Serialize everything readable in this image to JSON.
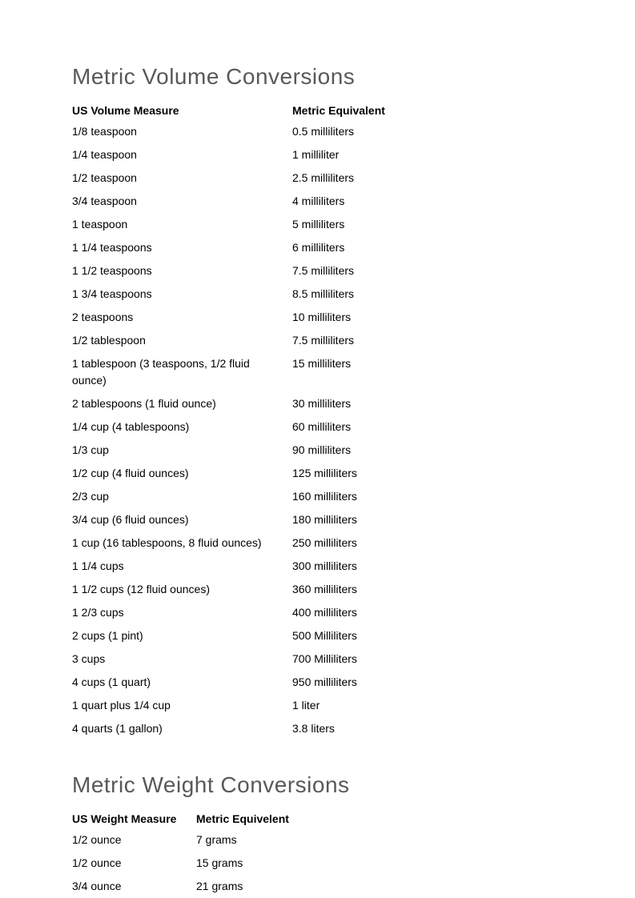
{
  "page": {
    "background_color": "#ffffff",
    "text_color": "#000000",
    "heading_color": "#595959",
    "font_family": "Arial, Helvetica, sans-serif",
    "body_fontsize": 14,
    "heading_fontsize": 28
  },
  "volume_section": {
    "title": "Metric Volume Conversions",
    "columns": [
      "US Volume Measure",
      "Metric Equivalent"
    ],
    "rows": [
      [
        "1/8 teaspoon",
        "0.5 milliliters"
      ],
      [
        "1/4 teaspoon",
        "1 milliliter"
      ],
      [
        "1/2 teaspoon",
        "2.5 milliliters"
      ],
      [
        "3/4 teaspoon",
        "4 milliliters"
      ],
      [
        "1 teaspoon",
        "5 milliliters"
      ],
      [
        "1 1/4 teaspoons",
        "6 milliliters"
      ],
      [
        "1 1/2 teaspoons",
        "7.5 milliliters"
      ],
      [
        "1 3/4 teaspoons",
        "8.5 milliliters"
      ],
      [
        "2 teaspoons",
        "10 milliliters"
      ],
      [
        "1/2 tablespoon",
        "7.5 milliliters"
      ],
      [
        "1 tablespoon (3 teaspoons, 1/2 fluid ounce)",
        "15 milliliters"
      ],
      [
        "2 tablespoons (1 fluid ounce)",
        "30 milliliters"
      ],
      [
        "1/4 cup (4 tablespoons)",
        "60 milliliters"
      ],
      [
        "1/3 cup",
        "90 milliliters"
      ],
      [
        "1/2 cup (4 fluid ounces)",
        "125 milliliters"
      ],
      [
        "2/3 cup",
        "160 milliliters"
      ],
      [
        "3/4 cup (6 fluid ounces)",
        "180 milliliters"
      ],
      [
        "1 cup (16 tablespoons, 8 fluid ounces)",
        "250 milliliters"
      ],
      [
        "1 1/4 cups",
        "300 milliliters"
      ],
      [
        "1 1/2 cups (12 fluid ounces)",
        "360 milliliters"
      ],
      [
        "1 2/3 cups",
        "400 milliliters"
      ],
      [
        "2 cups (1 pint)",
        "500 Milliliters"
      ],
      [
        "3 cups",
        "700 Milliliters"
      ],
      [
        "4 cups (1 quart)",
        "950 milliliters"
      ],
      [
        "1 quart plus 1/4 cup",
        "1 liter"
      ],
      [
        "4 quarts (1 gallon)",
        "3.8 liters"
      ]
    ]
  },
  "weight_section": {
    "title": "Metric Weight Conversions",
    "columns": [
      "US Weight Measure",
      "Metric Equivelent"
    ],
    "rows": [
      [
        "1/2 ounce",
        "7 grams"
      ],
      [
        "1/2 ounce",
        "15 grams"
      ],
      [
        "3/4 ounce",
        "21 grams"
      ]
    ]
  }
}
